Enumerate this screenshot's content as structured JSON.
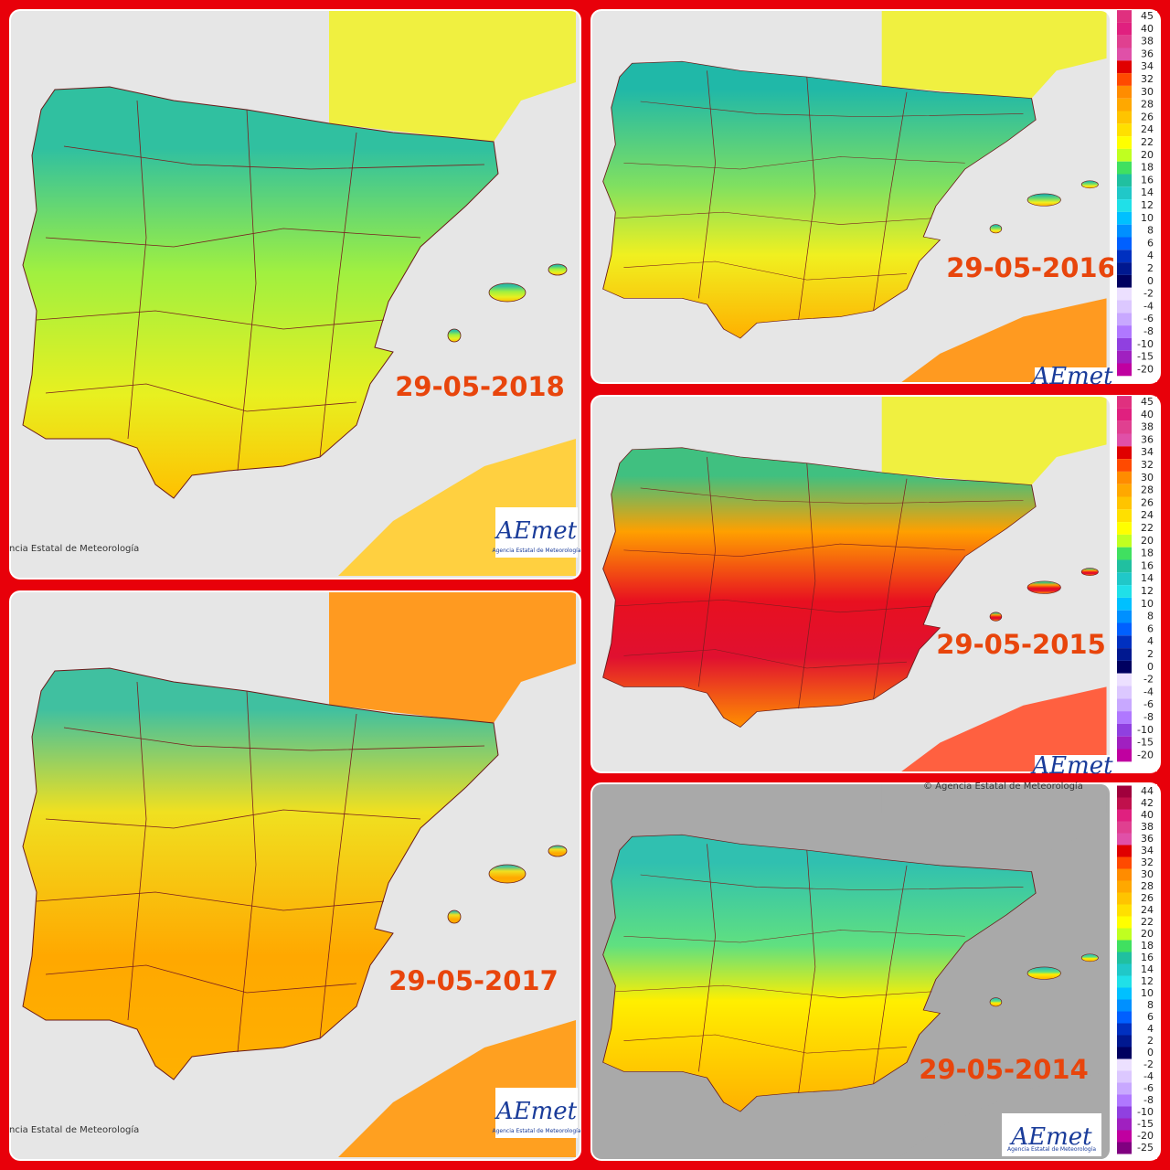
{
  "panels": [
    {
      "date": "29-05-2018",
      "credit": "ncia Estatal de Meteorología",
      "logo": "AEmet",
      "logo_subtitle": "Agencia Estatal de Meteorología"
    },
    {
      "date": "29-05-2016",
      "logo": "AEmet"
    },
    {
      "date": "29-05-2015",
      "logo": "AEmet"
    },
    {
      "date": "29-05-2017",
      "credit": "ncia Estatal de Meteorología",
      "logo": "AEmet",
      "logo_subtitle": "Agencia Estatal de Meteorología"
    },
    {
      "date": "29-05-2014",
      "credit": "© Agencia Estatal de Meteorología",
      "logo": "AEmet",
      "logo_subtitle": "Agencia Estatal de Meteorología"
    }
  ],
  "legends": [
    {
      "labels": [
        45,
        40,
        38,
        36,
        34,
        32,
        30,
        28,
        26,
        24,
        22,
        20,
        18,
        16,
        14,
        12,
        10,
        8,
        6,
        4,
        2,
        0,
        -2,
        -4,
        -6,
        -8,
        -10,
        -15,
        -20
      ],
      "colors": [
        "#e0307f",
        "#e0207f",
        "#e04090",
        "#e050a8",
        "#e00000",
        "#ff4a00",
        "#ff8c00",
        "#ffa800",
        "#ffc400",
        "#ffe000",
        "#ffff00",
        "#c0ff20",
        "#40e060",
        "#20c0a0",
        "#20c8c8",
        "#20e0e8",
        "#00c0ff",
        "#0090ff",
        "#0060ff",
        "#0030c0",
        "#001890",
        "#000060",
        "#ece0ff",
        "#dcc8ff",
        "#c8a8ff",
        "#b078ff",
        "#9040e0",
        "#a020c0",
        "#c000a0"
      ]
    },
    {
      "labels": [
        45,
        40,
        38,
        36,
        34,
        32,
        30,
        28,
        26,
        24,
        22,
        20,
        18,
        16,
        14,
        12,
        10,
        8,
        6,
        4,
        2,
        0,
        -2,
        -4,
        -6,
        -8,
        -10,
        -15,
        -20
      ],
      "colors": [
        "#e0307f",
        "#e0207f",
        "#e04090",
        "#e050a8",
        "#e00000",
        "#ff4a00",
        "#ff8c00",
        "#ffa800",
        "#ffc400",
        "#ffe000",
        "#ffff00",
        "#c0ff20",
        "#40e060",
        "#20c0a0",
        "#20c8c8",
        "#20e0e8",
        "#00c0ff",
        "#0090ff",
        "#0060ff",
        "#0030c0",
        "#001890",
        "#000060",
        "#ece0ff",
        "#dcc8ff",
        "#c8a8ff",
        "#b078ff",
        "#9040e0",
        "#a020c0",
        "#c000a0"
      ]
    },
    {
      "labels": [
        44,
        42,
        40,
        38,
        36,
        34,
        32,
        30,
        28,
        26,
        24,
        22,
        20,
        18,
        16,
        14,
        12,
        10,
        8,
        6,
        4,
        2,
        0,
        -2,
        -4,
        -6,
        -8,
        -10,
        -15,
        -20,
        -25
      ],
      "colors": [
        "#a0003c",
        "#c0104c",
        "#e0207f",
        "#e04090",
        "#e050a8",
        "#e00000",
        "#ff4a00",
        "#ff8c00",
        "#ffa800",
        "#ffc400",
        "#ffe000",
        "#ffff00",
        "#c0ff20",
        "#40e060",
        "#20c0a0",
        "#20c8c8",
        "#20e0e8",
        "#00c0ff",
        "#0090ff",
        "#0060ff",
        "#0030c0",
        "#001890",
        "#000060",
        "#ece0ff",
        "#dcc8ff",
        "#c8a8ff",
        "#b078ff",
        "#9040e0",
        "#a020c0",
        "#c000a0",
        "#800080"
      ]
    }
  ]
}
